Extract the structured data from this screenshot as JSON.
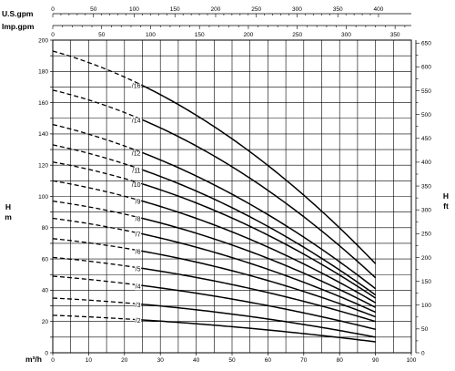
{
  "chart_data": {
    "type": "line",
    "xlabel": "m³/h",
    "ylabel_left": "H\nm",
    "ylabel_right": "H\nft",
    "top_axis_1_label": "U.S.gpm",
    "top_axis_2_label": "Imp.gpm",
    "xlim": [
      0,
      100
    ],
    "ylim": [
      0,
      200
    ],
    "ylim_ft": [
      0,
      656.2
    ],
    "x_ticks": [
      0,
      10,
      20,
      30,
      40,
      50,
      60,
      70,
      80,
      90,
      100
    ],
    "y_ticks": [
      0,
      20,
      40,
      60,
      80,
      100,
      120,
      140,
      160,
      180,
      200
    ],
    "ft_ticks": [
      0,
      50,
      100,
      150,
      200,
      250,
      300,
      350,
      400,
      450,
      500,
      550,
      600,
      650
    ],
    "us_gpm_ticks": [
      0,
      50,
      100,
      150,
      200,
      250,
      300,
      350,
      400
    ],
    "imp_gpm_ticks": [
      0,
      50,
      100,
      150,
      200,
      250,
      300,
      350
    ],
    "grid": true,
    "dashed_until_x": 25,
    "series": [
      {
        "name": "/2",
        "x": [
          0,
          25,
          90
        ],
        "y": [
          24,
          21,
          7
        ]
      },
      {
        "name": "/3",
        "x": [
          0,
          25,
          90
        ],
        "y": [
          35,
          31,
          10
        ]
      },
      {
        "name": "/4",
        "x": [
          0,
          25,
          90
        ],
        "y": [
          49,
          43,
          15
        ]
      },
      {
        "name": "/5",
        "x": [
          0,
          25,
          90
        ],
        "y": [
          61,
          54,
          20
        ]
      },
      {
        "name": "/6",
        "x": [
          0,
          25,
          90
        ],
        "y": [
          73,
          65,
          23
        ]
      },
      {
        "name": "/7",
        "x": [
          0,
          25,
          90
        ],
        "y": [
          86,
          76,
          26
        ]
      },
      {
        "name": "/8",
        "x": [
          0,
          25,
          90
        ],
        "y": [
          97,
          86,
          29
        ]
      },
      {
        "name": "/9",
        "x": [
          0,
          25,
          90
        ],
        "y": [
          110,
          97,
          32
        ]
      },
      {
        "name": "/10",
        "x": [
          0,
          25,
          90
        ],
        "y": [
          122,
          108,
          35
        ]
      },
      {
        "name": "/11",
        "x": [
          0,
          25,
          90
        ],
        "y": [
          133,
          117,
          37
        ]
      },
      {
        "name": "/12",
        "x": [
          0,
          25,
          90
        ],
        "y": [
          146,
          128,
          41
        ]
      },
      {
        "name": "/14",
        "x": [
          0,
          25,
          90
        ],
        "y": [
          168,
          149,
          48
        ]
      },
      {
        "name": "/16",
        "x": [
          0,
          25,
          90
        ],
        "y": [
          193,
          171,
          57
        ]
      }
    ]
  }
}
